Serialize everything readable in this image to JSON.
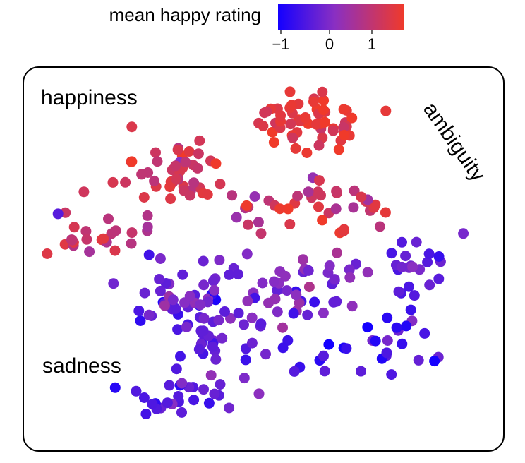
{
  "chart_data": {
    "type": "scatter",
    "title": "",
    "xlabel": "",
    "ylabel": "",
    "grid": false,
    "colorbar": {
      "label": "mean happy rating",
      "ticks": [
        "−1",
        "0",
        "1"
      ],
      "range": [
        -1.2,
        1.8
      ],
      "colors": {
        "low": "#1400ff",
        "mid": "#8a2fc2",
        "high": "#f03a2a"
      }
    },
    "annotations": {
      "top_left": "happiness",
      "bottom_left": "sadness",
      "top_right": "ambiguity"
    },
    "points": []
  }
}
